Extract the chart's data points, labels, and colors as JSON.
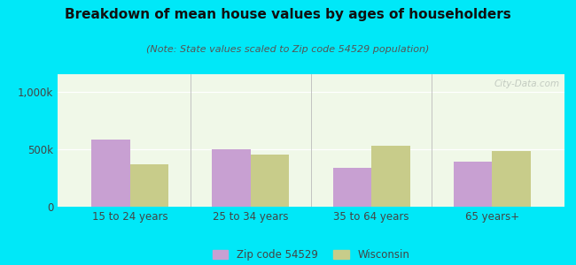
{
  "title": "Breakdown of mean house values by ages of householders",
  "subtitle": "(Note: State values scaled to Zip code 54529 population)",
  "categories": [
    "15 to 24 years",
    "25 to 34 years",
    "35 to 64 years",
    "65 years+"
  ],
  "zip_values": [
    580000,
    500000,
    340000,
    390000
  ],
  "wi_values": [
    370000,
    450000,
    530000,
    480000
  ],
  "zip_color": "#c8a0d2",
  "wi_color": "#c8cc8a",
  "background_outer": "#00e8f8",
  "background_inner": "#f0f8e8",
  "ylim": [
    0,
    1150000
  ],
  "yticks": [
    0,
    500000,
    1000000
  ],
  "ytick_labels": [
    "0",
    "500k",
    "1,000k"
  ],
  "legend_zip_label": "Zip code 54529",
  "legend_wi_label": "Wisconsin",
  "bar_width": 0.32,
  "title_fontsize": 11,
  "subtitle_fontsize": 8,
  "tick_fontsize": 8.5,
  "legend_fontsize": 8.5,
  "grid_color": "#ffffff",
  "separator_color": "#bbbbbb",
  "text_color": "#444444"
}
